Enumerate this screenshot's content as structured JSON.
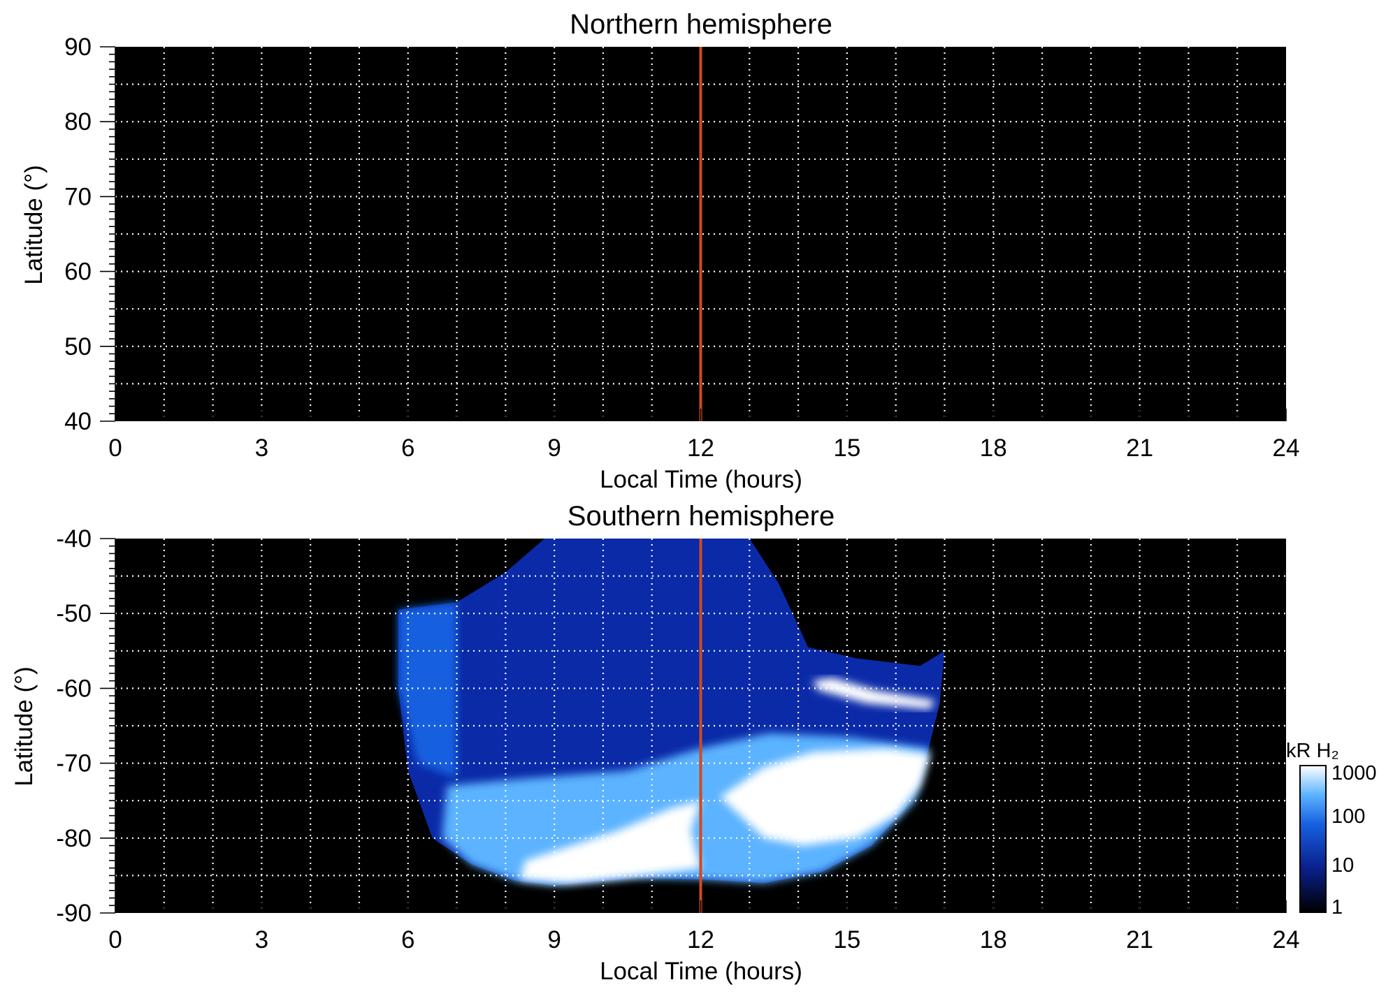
{
  "chart_data": [
    {
      "type": "heatmap",
      "title": "Northern hemisphere",
      "xlabel": "Local Time (hours)",
      "ylabel": "Latitude (°)",
      "xlim": [
        0,
        24
      ],
      "ylim": [
        40,
        90
      ],
      "xticks": [
        "0",
        "3",
        "6",
        "9",
        "12",
        "15",
        "18",
        "21",
        "24"
      ],
      "yticks": [
        "40",
        "50",
        "60",
        "70",
        "80",
        "90"
      ],
      "grid": true,
      "grid_x_step": 1,
      "grid_y_step": 5,
      "reference_line": {
        "x": 12,
        "color": "#d24a1e"
      },
      "emission": []
    },
    {
      "type": "heatmap",
      "title": "Southern hemisphere",
      "xlabel": "Local Time (hours)",
      "ylabel": "Latitude (°)",
      "xlim": [
        0,
        24
      ],
      "ylim": [
        -90,
        -40
      ],
      "xticks": [
        "0",
        "3",
        "6",
        "9",
        "12",
        "15",
        "18",
        "21",
        "24"
      ],
      "yticks": [
        "-90",
        "-80",
        "-70",
        "-60",
        "-50",
        "-40"
      ],
      "grid": true,
      "grid_x_step": 1,
      "grid_y_step": 5,
      "reference_line": {
        "x": 12,
        "color": "#d24a1e"
      },
      "coverage_outline": [
        [
          5.8,
          -49.5
        ],
        [
          7.0,
          -48.5
        ],
        [
          8.0,
          -44.5
        ],
        [
          8.8,
          -40
        ],
        [
          13.0,
          -40
        ],
        [
          13.6,
          -46
        ],
        [
          14.2,
          -54.5
        ],
        [
          15.2,
          -56
        ],
        [
          16.5,
          -57
        ],
        [
          17.0,
          -55
        ],
        [
          16.9,
          -62
        ],
        [
          16.6,
          -70
        ],
        [
          16.2,
          -76
        ],
        [
          15.5,
          -81
        ],
        [
          14.5,
          -84.5
        ],
        [
          13.3,
          -86
        ],
        [
          12.0,
          -85.5
        ],
        [
          10.7,
          -85.3
        ],
        [
          9.0,
          -86.3
        ],
        [
          8.2,
          -85.7
        ],
        [
          7.3,
          -83.5
        ],
        [
          6.5,
          -80
        ],
        [
          6.0,
          -71
        ],
        [
          5.8,
          -60
        ]
      ],
      "emission": [
        {
          "intensity_kR": 150,
          "points": [
            [
              6.8,
              -73
            ],
            [
              8.5,
              -72
            ],
            [
              10.5,
              -71
            ],
            [
              12.0,
              -68
            ],
            [
              13.4,
              -66
            ],
            [
              15.0,
              -66.5
            ],
            [
              16.7,
              -68
            ],
            [
              16.4,
              -75
            ],
            [
              15.5,
              -81
            ],
            [
              14.5,
              -84.5
            ],
            [
              13.3,
              -86
            ],
            [
              12.0,
              -85.5
            ],
            [
              10.7,
              -85.3
            ],
            [
              9.0,
              -86.3
            ],
            [
              8.2,
              -85.7
            ],
            [
              7.3,
              -83.5
            ],
            [
              6.7,
              -80
            ]
          ]
        },
        {
          "intensity_kR": 1000,
          "points": [
            [
              8.4,
              -83
            ],
            [
              10.3,
              -79
            ],
            [
              11.4,
              -76
            ],
            [
              12.0,
              -75
            ],
            [
              11.8,
              -79
            ],
            [
              12.0,
              -84
            ],
            [
              10.8,
              -85
            ],
            [
              9.3,
              -86
            ],
            [
              8.3,
              -85.5
            ]
          ]
        },
        {
          "intensity_kR": 1000,
          "points": [
            [
              12.4,
              -74.5
            ],
            [
              13.3,
              -70.5
            ],
            [
              14.3,
              -68.5
            ],
            [
              15.8,
              -68
            ],
            [
              16.7,
              -68.8
            ],
            [
              16.5,
              -73
            ],
            [
              16.0,
              -77
            ],
            [
              15.2,
              -80
            ],
            [
              14.1,
              -81
            ],
            [
              13.3,
              -80
            ]
          ]
        },
        {
          "intensity_kR": 1000,
          "points": [
            [
              14.3,
              -59
            ],
            [
              14.7,
              -58.6
            ],
            [
              15.6,
              -60.3
            ],
            [
              16.8,
              -61.6
            ],
            [
              16.7,
              -62.8
            ],
            [
              15.4,
              -62
            ],
            [
              14.4,
              -60.2
            ]
          ]
        },
        {
          "intensity_kR": 60,
          "points": [
            [
              5.8,
              -49.5
            ],
            [
              7.0,
              -48.5
            ],
            [
              7.0,
              -72
            ],
            [
              6.2,
              -70
            ],
            [
              5.8,
              -60
            ]
          ]
        }
      ]
    }
  ],
  "colorbar": {
    "label": "kR H₂",
    "scale": "log",
    "ticks": [
      "1",
      "10",
      "100",
      "1000"
    ],
    "colors": [
      "#000000",
      "#0a1f8c",
      "#1660e0",
      "#5cb3ff",
      "#ffffff"
    ]
  }
}
